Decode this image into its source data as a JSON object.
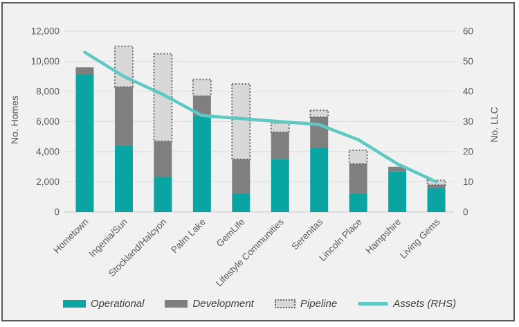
{
  "chart_data": {
    "type": "bar",
    "subtype": "stacked-bars-with-line-overlay",
    "title": "",
    "categories": [
      "Hometown",
      "Ingenia/Sun",
      "Stockland/Halcyon",
      "Palm Lake",
      "GemLife",
      "Lifestyle Communities",
      "Serenitas",
      "Lincoln Place",
      "Hampshire",
      "Living Gems"
    ],
    "series": [
      {
        "name": "Operational",
        "type": "bar",
        "stacked": true,
        "values": [
          9150,
          4400,
          2300,
          6400,
          1250,
          3500,
          4250,
          1250,
          2700,
          1600
        ]
      },
      {
        "name": "Development",
        "type": "bar",
        "stacked": true,
        "values": [
          450,
          3900,
          2400,
          1300,
          2250,
          1800,
          2050,
          1950,
          300,
          200
        ]
      },
      {
        "name": "Pipeline",
        "type": "bar",
        "stacked": true,
        "style": "dashed",
        "values": [
          0,
          2700,
          5800,
          1100,
          5000,
          600,
          450,
          900,
          0,
          300
        ]
      },
      {
        "name": "Assets (RHS)",
        "type": "line",
        "axis": "right",
        "values": [
          53,
          45,
          39,
          32,
          31,
          30,
          29,
          24,
          16,
          10
        ]
      }
    ],
    "xlabel": "",
    "ylabel_left": "No. Homes",
    "ylabel_right": "No. LLC",
    "ylim_left": [
      0,
      12000
    ],
    "ylim_right": [
      0,
      60
    ],
    "yticks_left": [
      "0",
      "2,000",
      "4,000",
      "6,000",
      "8,000",
      "10,000",
      "12,000"
    ],
    "yticks_right": [
      "0",
      "10",
      "20",
      "30",
      "40",
      "50",
      "60"
    ],
    "grid": true,
    "legend_position": "bottom",
    "category_label_rotation_deg": 45
  },
  "colors": {
    "operational": "#0aa5a2",
    "development": "#7f7f7f",
    "pipeline_fill": "#d8d8d8",
    "pipeline_border": "#6a6a6a",
    "assets_line": "#5ec8c3",
    "gridline": "#dcdcdc",
    "axis_line": "#c9c9c9",
    "background": "#f1f1f2",
    "frame_border": "#58595b"
  }
}
